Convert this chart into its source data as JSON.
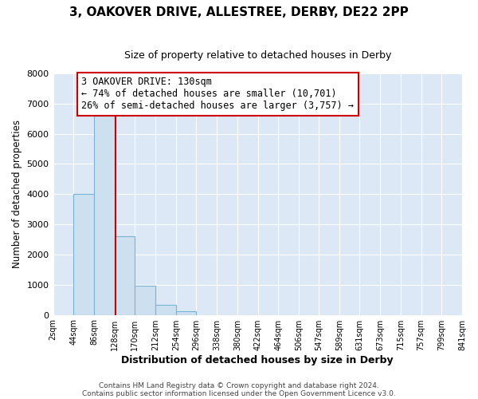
{
  "title": "3, OAKOVER DRIVE, ALLESTREE, DERBY, DE22 2PP",
  "subtitle": "Size of property relative to detached houses in Derby",
  "xlabel": "Distribution of detached houses by size in Derby",
  "ylabel": "Number of detached properties",
  "bar_left_edges": [
    2,
    44,
    86,
    128,
    170,
    212,
    254,
    296,
    338,
    380,
    422,
    464,
    506,
    547,
    589,
    631,
    673,
    715,
    757,
    799
  ],
  "bar_heights": [
    0,
    4000,
    6600,
    2600,
    960,
    320,
    130,
    0,
    0,
    0,
    0,
    0,
    0,
    0,
    0,
    0,
    0,
    0,
    0,
    0
  ],
  "bin_width": 42,
  "tick_labels": [
    "2sqm",
    "44sqm",
    "86sqm",
    "128sqm",
    "170sqm",
    "212sqm",
    "254sqm",
    "296sqm",
    "338sqm",
    "380sqm",
    "422sqm",
    "464sqm",
    "506sqm",
    "547sqm",
    "589sqm",
    "631sqm",
    "673sqm",
    "715sqm",
    "757sqm",
    "799sqm",
    "841sqm"
  ],
  "property_line_x": 130,
  "bar_color": "#cce0f0",
  "bar_edge_color": "#7ab4d4",
  "property_line_color": "#cc0000",
  "annotation_title": "3 OAKOVER DRIVE: 130sqm",
  "annotation_line1": "← 74% of detached houses are smaller (10,701)",
  "annotation_line2": "26% of semi-detached houses are larger (3,757) →",
  "annotation_box_color": "#ffffff",
  "annotation_box_edge": "#cc0000",
  "ylim": [
    0,
    8000
  ],
  "yticks": [
    0,
    1000,
    2000,
    3000,
    4000,
    5000,
    6000,
    7000,
    8000
  ],
  "xlim": [
    2,
    841
  ],
  "footer1": "Contains HM Land Registry data © Crown copyright and database right 2024.",
  "footer2": "Contains public sector information licensed under the Open Government Licence v3.0.",
  "bg_color": "#ffffff",
  "plot_bg_color": "#dce8f5",
  "grid_color": "#ffffff"
}
